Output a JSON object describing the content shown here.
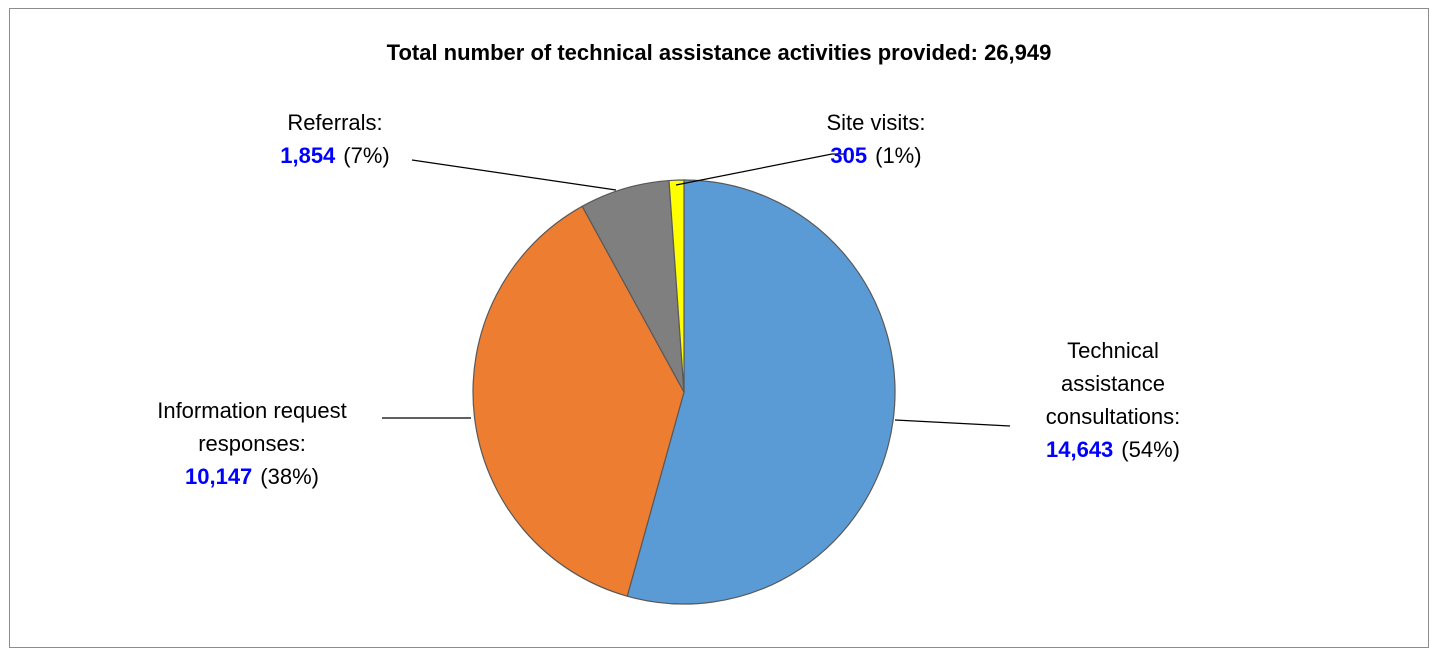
{
  "chart_data": {
    "type": "pie",
    "title": "Total number of technical assistance activities provided: 26,949",
    "slices": [
      {
        "id": "technical",
        "label_lines": [
          "Technical",
          "assistance",
          "consultations:"
        ],
        "value": 14643,
        "value_label": "14,643",
        "percent_label": "(54%)",
        "color": "#5b9bd5"
      },
      {
        "id": "information",
        "label_lines": [
          "Information request",
          "responses:"
        ],
        "value": 10147,
        "value_label": "10,147",
        "percent_label": "(38%)",
        "color": "#ed7d31"
      },
      {
        "id": "referrals",
        "label_lines": [
          "Referrals:"
        ],
        "value": 1854,
        "value_label": "1,854",
        "percent_label": "(7%)",
        "color": "#7f7f7f"
      },
      {
        "id": "site-visits",
        "label_lines": [
          "Site visits:"
        ],
        "value": 305,
        "value_label": "305",
        "percent_label": "(1%)",
        "color": "#ffff00"
      }
    ],
    "value_color": "#0000ff",
    "legend": "none",
    "start_angle": "12 o'clock",
    "direction": "clockwise"
  }
}
